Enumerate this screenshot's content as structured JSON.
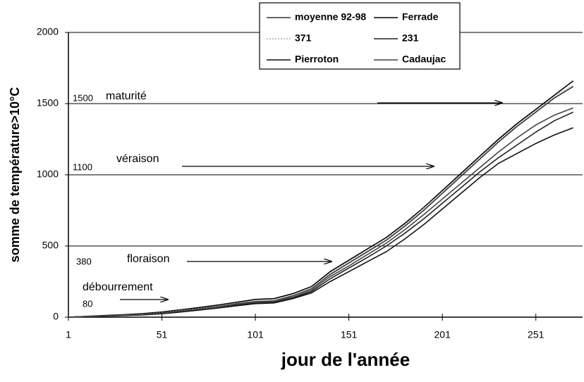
{
  "chart_data": {
    "type": "line",
    "y_label": "somme de température>10°C",
    "x_label": "jour de l'année",
    "x": [
      1,
      11,
      21,
      31,
      41,
      51,
      61,
      71,
      81,
      91,
      101,
      111,
      121,
      131,
      141,
      151,
      161,
      171,
      181,
      191,
      201,
      211,
      221,
      231,
      241,
      251,
      261,
      271
    ],
    "series": [
      {
        "name": "moyenne 92-98",
        "color": "#333333",
        "values": [
          0,
          5,
          10,
          15,
          20,
          30,
          45,
          60,
          75,
          95,
          110,
          115,
          150,
          200,
          300,
          380,
          460,
          540,
          640,
          750,
          870,
          990,
          1110,
          1230,
          1340,
          1440,
          1540,
          1620
        ]
      },
      {
        "name": "Ferrade",
        "color": "#000000",
        "values": [
          0,
          6,
          12,
          18,
          25,
          36,
          52,
          68,
          85,
          105,
          125,
          130,
          165,
          215,
          320,
          400,
          480,
          560,
          660,
          770,
          890,
          1010,
          1130,
          1250,
          1360,
          1460,
          1560,
          1660
        ]
      },
      {
        "name": "371",
        "color": "#aaaaaa",
        "dashed": true,
        "values": [
          0,
          5,
          10,
          16,
          22,
          32,
          48,
          62,
          78,
          100,
          115,
          120,
          155,
          205,
          310,
          390,
          470,
          550,
          650,
          765,
          880,
          1000,
          1120,
          1240,
          1350,
          1450,
          1550,
          1630
        ]
      },
      {
        "name": "231",
        "color": "#222222",
        "values": [
          0,
          4,
          8,
          12,
          17,
          25,
          38,
          52,
          66,
          85,
          100,
          105,
          135,
          180,
          270,
          345,
          420,
          500,
          590,
          690,
          800,
          910,
          1020,
          1120,
          1210,
          1300,
          1380,
          1440
        ]
      },
      {
        "name": "Pierroton",
        "color": "#111111",
        "values": [
          0,
          4,
          8,
          12,
          16,
          24,
          36,
          50,
          64,
          80,
          95,
          100,
          130,
          170,
          250,
          320,
          390,
          460,
          550,
          650,
          760,
          870,
          980,
          1080,
          1150,
          1220,
          1280,
          1330
        ]
      },
      {
        "name": "Cadaujac",
        "color": "#444444",
        "values": [
          0,
          5,
          9,
          14,
          19,
          28,
          42,
          56,
          70,
          90,
          105,
          110,
          140,
          190,
          285,
          360,
          440,
          520,
          615,
          720,
          830,
          940,
          1050,
          1160,
          1260,
          1350,
          1420,
          1470
        ]
      }
    ],
    "xlim": [
      1,
      276
    ],
    "xticks": [
      1,
      51,
      101,
      151,
      201,
      251
    ],
    "ylim": [
      0,
      2000
    ],
    "yticks": [
      0,
      500,
      1000,
      1500,
      2000
    ],
    "grid": true,
    "annotations": [
      {
        "value": 1500,
        "label": "maturité"
      },
      {
        "value": 1100,
        "label": "véraison"
      },
      {
        "value": 380,
        "label": "floraison"
      },
      {
        "value": 80,
        "label": "débourrement"
      }
    ]
  }
}
